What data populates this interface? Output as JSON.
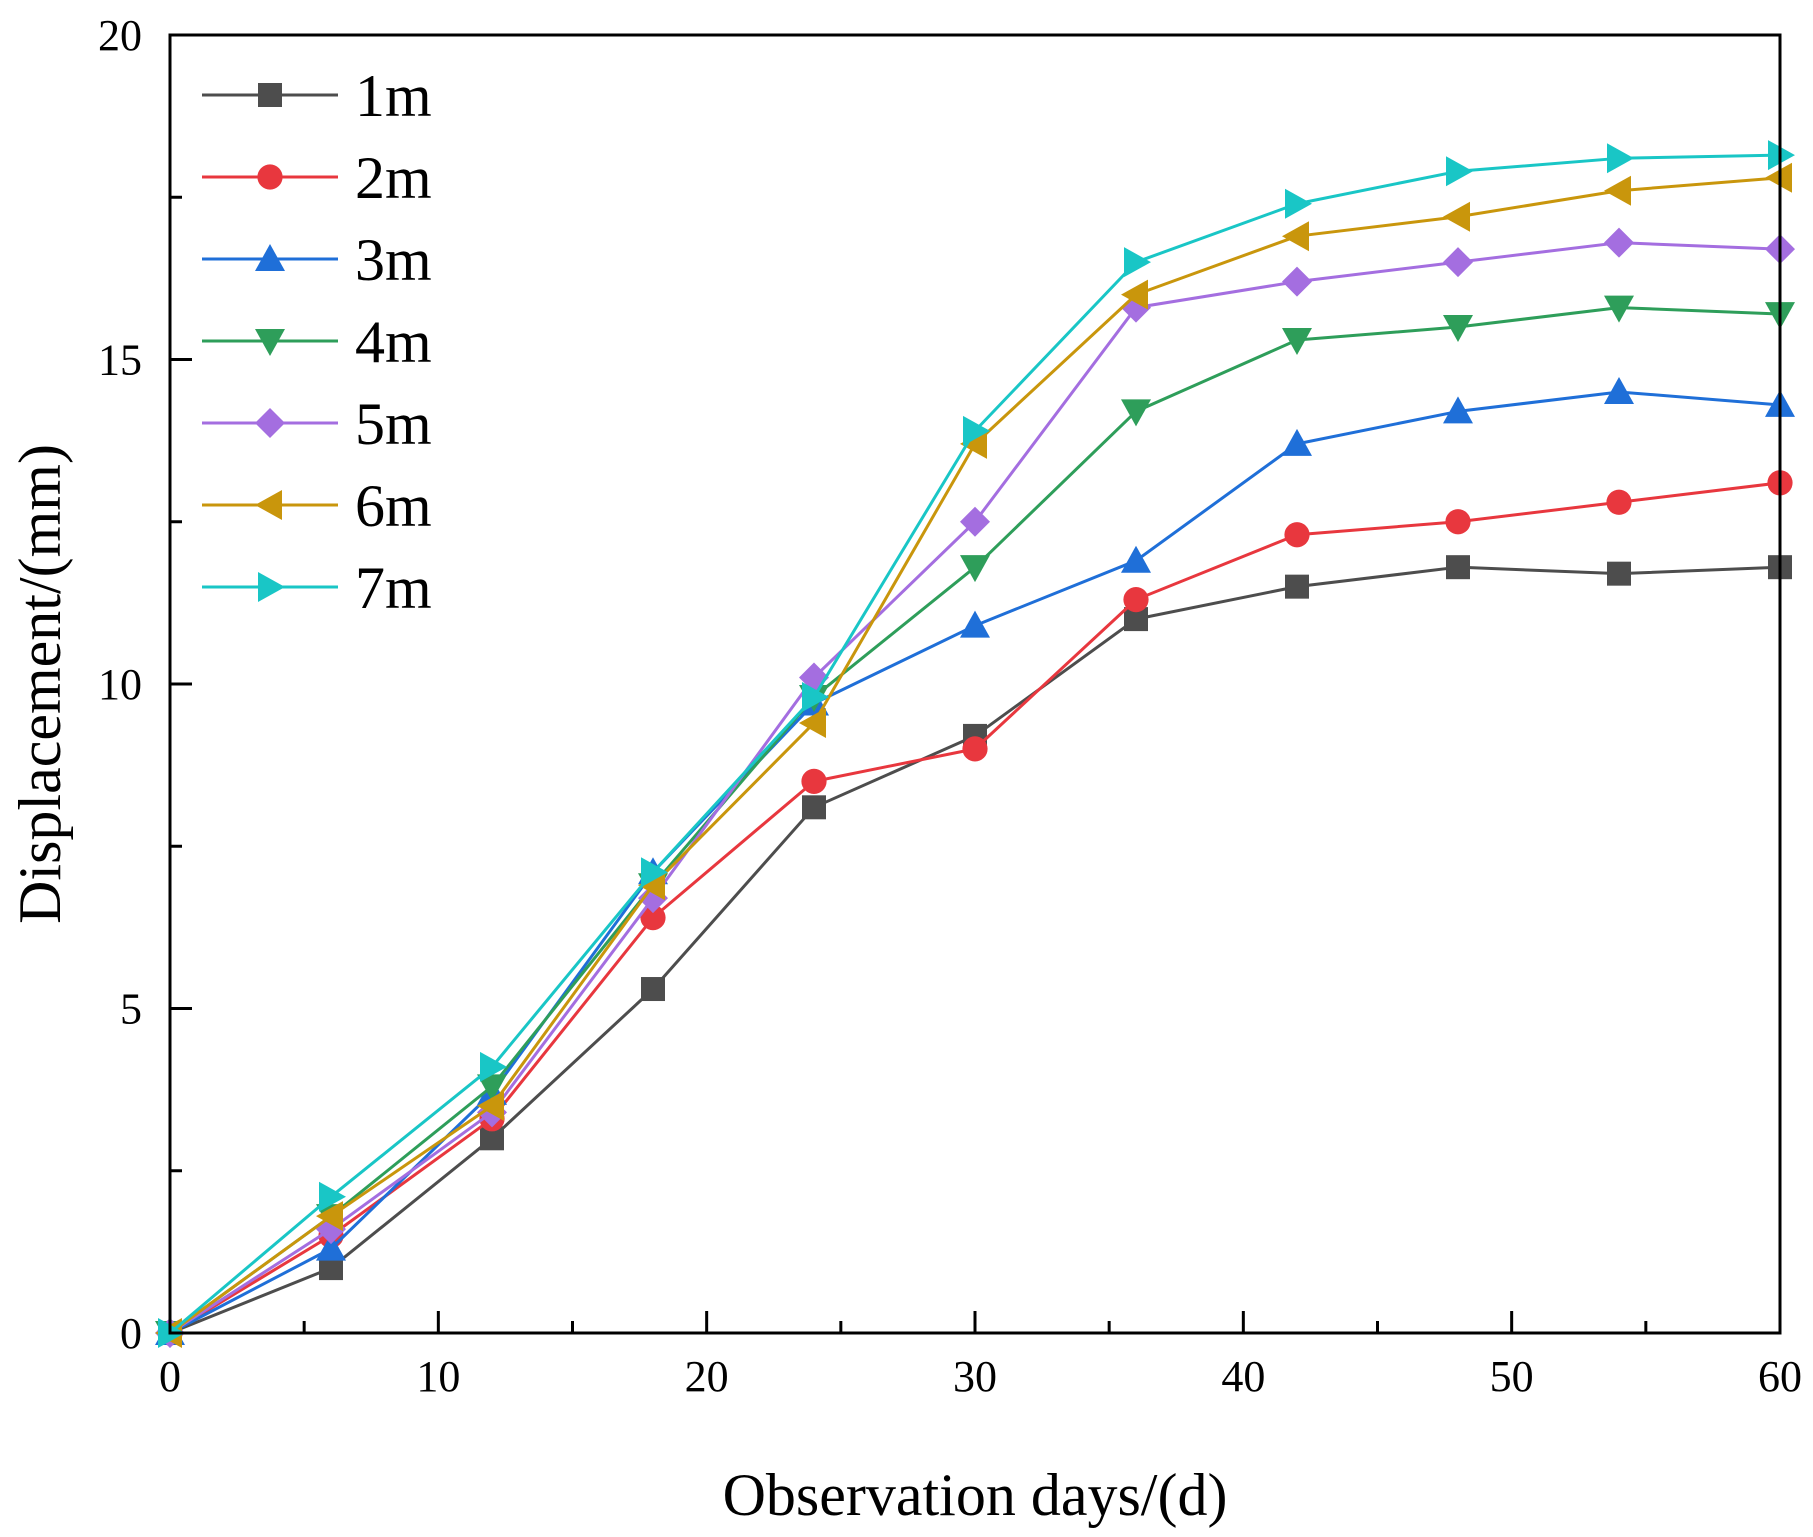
{
  "chart_data": {
    "type": "line",
    "title": "",
    "xlabel": "Observation days/(d)",
    "ylabel": "Displacement/(mm)",
    "xlim": [
      0,
      60
    ],
    "ylim": [
      0,
      20
    ],
    "xticks": [
      0,
      10,
      20,
      30,
      40,
      50,
      60
    ],
    "yticks": [
      0,
      5,
      10,
      15,
      20
    ],
    "x": [
      0,
      6,
      12,
      18,
      24,
      30,
      36,
      42,
      48,
      54,
      60
    ],
    "legend_position": "top-left",
    "series": [
      {
        "name": "1m",
        "color": "#4d4d4d",
        "marker": "square",
        "values": [
          0,
          1.0,
          3.0,
          5.3,
          8.1,
          9.2,
          11.0,
          11.5,
          11.8,
          11.7,
          11.8
        ]
      },
      {
        "name": "2m",
        "color": "#e8373e",
        "marker": "circle",
        "values": [
          0,
          1.5,
          3.3,
          6.4,
          8.5,
          9.0,
          11.3,
          12.3,
          12.5,
          12.8,
          13.1
        ]
      },
      {
        "name": "3m",
        "color": "#1f6fd8",
        "marker": "triangle-up",
        "values": [
          0,
          1.3,
          3.7,
          7.1,
          9.7,
          10.9,
          11.9,
          13.7,
          14.2,
          14.5,
          14.3
        ]
      },
      {
        "name": "4m",
        "color": "#2e9e5a",
        "marker": "triangle-down",
        "values": [
          0,
          1.8,
          3.8,
          6.9,
          9.8,
          11.8,
          14.2,
          15.3,
          15.5,
          15.8,
          15.7
        ]
      },
      {
        "name": "5m",
        "color": "#a46ee0",
        "marker": "diamond",
        "values": [
          0,
          1.6,
          3.4,
          6.7,
          10.1,
          12.5,
          15.8,
          16.2,
          16.5,
          16.8,
          16.7
        ]
      },
      {
        "name": "6m",
        "color": "#c9960c",
        "marker": "triangle-left",
        "values": [
          0,
          1.8,
          3.5,
          6.9,
          9.4,
          13.7,
          16.0,
          16.9,
          17.2,
          17.6,
          17.8
        ]
      },
      {
        "name": "7m",
        "color": "#19c6c6",
        "marker": "triangle-right",
        "values": [
          0,
          2.1,
          4.1,
          7.1,
          9.8,
          13.9,
          16.5,
          17.4,
          17.9,
          18.1,
          18.15
        ]
      }
    ]
  }
}
